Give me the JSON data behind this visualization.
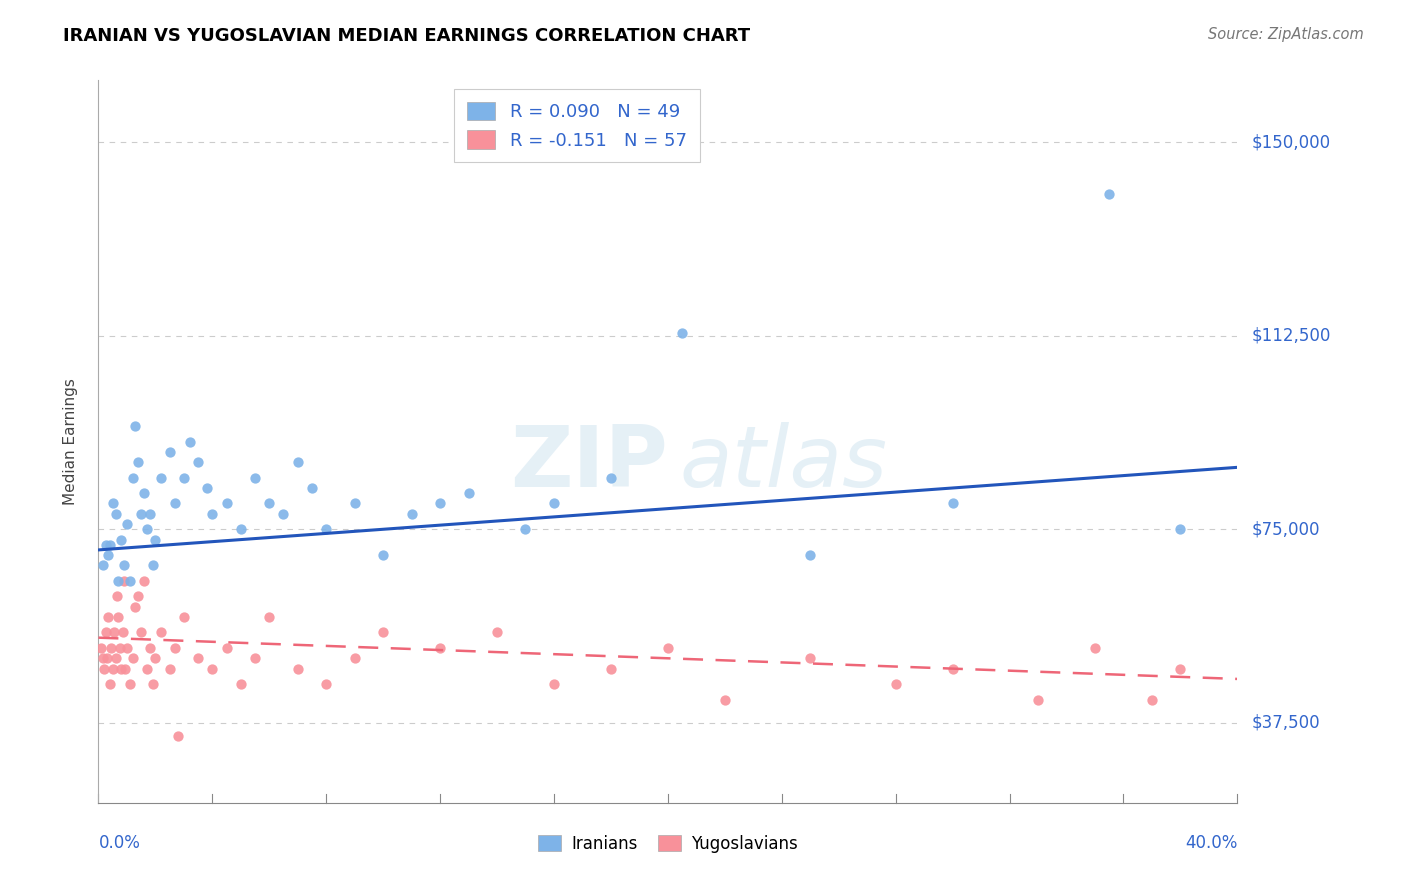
{
  "title": "IRANIAN VS YUGOSLAVIAN MEDIAN EARNINGS CORRELATION CHART",
  "source": "Source: ZipAtlas.com",
  "ylabel": "Median Earnings",
  "yticks": [
    37500,
    75000,
    112500,
    150000
  ],
  "ytick_labels": [
    "$37,500",
    "$75,000",
    "$112,500",
    "$150,000"
  ],
  "xmin": 0.0,
  "xmax": 40.0,
  "ymin": 22000,
  "ymax": 162000,
  "iranian_color": "#7EB3E8",
  "yugoslav_color": "#F8919A",
  "iranian_trend_color": "#2255BB",
  "yugoslav_trend_color": "#EE6677",
  "iranian_R": 0.09,
  "iranian_N": 49,
  "yugoslav_R": -0.151,
  "yugoslav_N": 57,
  "legend_color": "#3366CC",
  "iranians_x": [
    0.15,
    0.25,
    0.35,
    0.5,
    0.6,
    0.7,
    0.8,
    0.9,
    1.0,
    1.1,
    1.2,
    1.3,
    1.4,
    1.5,
    1.6,
    1.7,
    1.8,
    1.9,
    2.0,
    2.2,
    2.5,
    2.7,
    3.0,
    3.2,
    3.5,
    3.8,
    4.0,
    4.5,
    5.0,
    5.5,
    6.0,
    6.5,
    7.0,
    7.5,
    8.0,
    9.0,
    10.0,
    11.0,
    12.0,
    13.0,
    15.0,
    16.0,
    18.0,
    20.5,
    25.0,
    30.0,
    35.5,
    38.0,
    0.4
  ],
  "iranians_y": [
    68000,
    72000,
    70000,
    80000,
    78000,
    65000,
    73000,
    68000,
    76000,
    65000,
    85000,
    95000,
    88000,
    78000,
    82000,
    75000,
    78000,
    68000,
    73000,
    85000,
    90000,
    80000,
    85000,
    92000,
    88000,
    83000,
    78000,
    80000,
    75000,
    85000,
    80000,
    78000,
    88000,
    83000,
    75000,
    80000,
    70000,
    78000,
    80000,
    82000,
    75000,
    80000,
    85000,
    113000,
    70000,
    80000,
    140000,
    75000,
    72000
  ],
  "yugoslav_x": [
    0.1,
    0.15,
    0.2,
    0.25,
    0.3,
    0.35,
    0.4,
    0.45,
    0.5,
    0.55,
    0.6,
    0.65,
    0.7,
    0.75,
    0.8,
    0.85,
    0.9,
    0.95,
    1.0,
    1.1,
    1.2,
    1.3,
    1.4,
    1.5,
    1.6,
    1.7,
    1.8,
    1.9,
    2.0,
    2.2,
    2.5,
    2.7,
    3.0,
    3.5,
    4.0,
    4.5,
    5.0,
    5.5,
    6.0,
    7.0,
    8.0,
    9.0,
    10.0,
    12.0,
    14.0,
    16.0,
    18.0,
    20.0,
    22.0,
    25.0,
    28.0,
    30.0,
    33.0,
    35.0,
    37.0,
    38.0,
    2.8
  ],
  "yugoslav_y": [
    52000,
    50000,
    48000,
    55000,
    50000,
    58000,
    45000,
    52000,
    48000,
    55000,
    50000,
    62000,
    58000,
    52000,
    48000,
    55000,
    65000,
    48000,
    52000,
    45000,
    50000,
    60000,
    62000,
    55000,
    65000,
    48000,
    52000,
    45000,
    50000,
    55000,
    48000,
    52000,
    58000,
    50000,
    48000,
    52000,
    45000,
    50000,
    58000,
    48000,
    45000,
    50000,
    55000,
    52000,
    55000,
    45000,
    48000,
    52000,
    42000,
    50000,
    45000,
    48000,
    42000,
    52000,
    42000,
    48000,
    35000
  ]
}
